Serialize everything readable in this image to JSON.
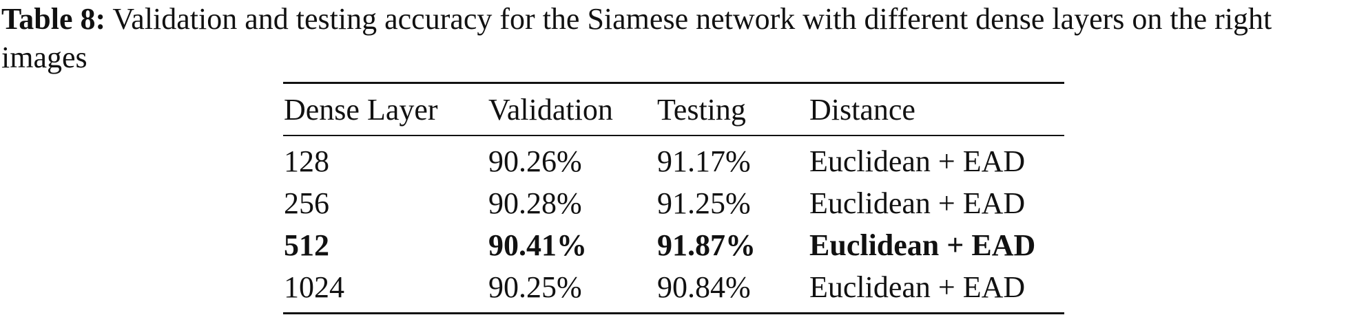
{
  "caption": {
    "label": "Table 8:",
    "text": " Validation and testing accuracy for the Siamese network with different dense layers on the right images"
  },
  "table": {
    "headers": [
      "Dense Layer",
      "Validation",
      "Testing",
      "Distance"
    ],
    "rows": [
      {
        "cells": [
          "128",
          "90.26%",
          "91.17%",
          "Euclidean + EAD"
        ],
        "bold": false
      },
      {
        "cells": [
          "256",
          "90.28%",
          "91.25%",
          "Euclidean + EAD"
        ],
        "bold": false
      },
      {
        "cells": [
          "512",
          "90.41%",
          "91.87%",
          "Euclidean + EAD"
        ],
        "bold": true
      },
      {
        "cells": [
          "1024",
          "90.25%",
          "90.84%",
          "Euclidean + EAD"
        ],
        "bold": false
      }
    ]
  }
}
